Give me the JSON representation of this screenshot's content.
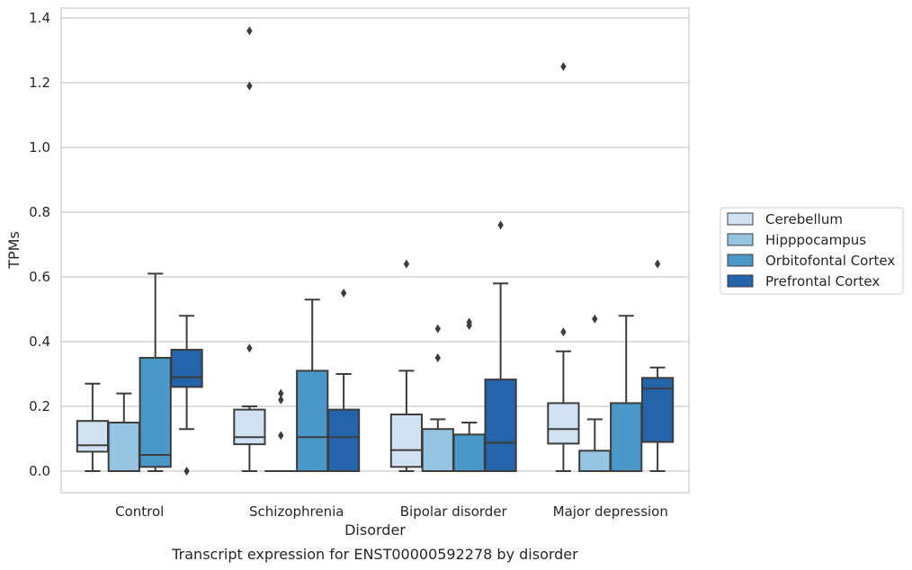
{
  "chart_data": {
    "type": "box",
    "title": "",
    "caption": "Transcript expression for ENST00000592278 by disorder",
    "xlabel": "Disorder",
    "ylabel": "TPMs",
    "ylim": [
      -0.065,
      1.43
    ],
    "yticks": [
      0.0,
      0.2,
      0.4,
      0.6,
      0.8,
      1.0,
      1.2,
      1.4
    ],
    "ytick_labels": [
      "0.0",
      "0.2",
      "0.4",
      "0.6",
      "0.8",
      "1.0",
      "1.2",
      "1.4"
    ],
    "grid": "horizontal",
    "legend_position": "right",
    "categories": [
      "Control",
      "Schizophrenia",
      "Bipolar disorder",
      "Major depression"
    ],
    "series": [
      {
        "name": "Cerebellum",
        "color": "#d0e1f2",
        "boxes": [
          {
            "whisker_low": 0.0,
            "q1": 0.06,
            "median": 0.08,
            "q3": 0.155,
            "whisker_high": 0.27,
            "outliers": []
          },
          {
            "whisker_low": 0.0,
            "q1": 0.083,
            "median": 0.105,
            "q3": 0.19,
            "whisker_high": 0.2,
            "outliers": [
              0.38,
              1.19,
              1.36
            ]
          },
          {
            "whisker_low": 0.0,
            "q1": 0.013,
            "median": 0.065,
            "q3": 0.175,
            "whisker_high": 0.31,
            "outliers": [
              0.64
            ]
          },
          {
            "whisker_low": 0.0,
            "q1": 0.085,
            "median": 0.13,
            "q3": 0.21,
            "whisker_high": 0.37,
            "outliers": [
              0.43,
              1.25
            ]
          }
        ]
      },
      {
        "name": "Hipppocampus",
        "color": "#94c4df",
        "boxes": [
          {
            "whisker_low": 0.0,
            "q1": 0.0,
            "median": 0.0,
            "q3": 0.15,
            "whisker_high": 0.24,
            "outliers": []
          },
          {
            "whisker_low": 0.0,
            "q1": 0.0,
            "median": 0.0,
            "q3": 0.0,
            "whisker_high": 0.0,
            "outliers": [
              0.11,
              0.22,
              0.24
            ]
          },
          {
            "whisker_low": 0.0,
            "q1": 0.0,
            "median": 0.0,
            "q3": 0.13,
            "whisker_high": 0.16,
            "outliers": [
              0.35,
              0.44
            ]
          },
          {
            "whisker_low": 0.0,
            "q1": 0.0,
            "median": 0.0,
            "q3": 0.063,
            "whisker_high": 0.16,
            "outliers": [
              0.47
            ]
          }
        ]
      },
      {
        "name": "Orbitofontal Cortex",
        "color": "#4a98c9",
        "boxes": [
          {
            "whisker_low": 0.0,
            "q1": 0.013,
            "median": 0.05,
            "q3": 0.35,
            "whisker_high": 0.61,
            "outliers": []
          },
          {
            "whisker_low": 0.0,
            "q1": 0.0,
            "median": 0.105,
            "q3": 0.31,
            "whisker_high": 0.53,
            "outliers": []
          },
          {
            "whisker_low": 0.0,
            "q1": 0.0,
            "median": 0.0,
            "q3": 0.113,
            "whisker_high": 0.15,
            "outliers": [
              0.45,
              0.46
            ]
          },
          {
            "whisker_low": 0.0,
            "q1": 0.0,
            "median": 0.0,
            "q3": 0.21,
            "whisker_high": 0.48,
            "outliers": []
          }
        ]
      },
      {
        "name": "Prefrontal Cortex",
        "color": "#2464ab",
        "boxes": [
          {
            "whisker_low": 0.13,
            "q1": 0.26,
            "median": 0.29,
            "q3": 0.375,
            "whisker_high": 0.48,
            "outliers": [
              0.0
            ]
          },
          {
            "whisker_low": 0.0,
            "q1": 0.0,
            "median": 0.105,
            "q3": 0.19,
            "whisker_high": 0.3,
            "outliers": [
              0.55
            ]
          },
          {
            "whisker_low": 0.0,
            "q1": 0.0,
            "median": 0.088,
            "q3": 0.283,
            "whisker_high": 0.58,
            "outliers": [
              0.76
            ]
          },
          {
            "whisker_low": 0.0,
            "q1": 0.09,
            "median": 0.255,
            "q3": 0.288,
            "whisker_high": 0.32,
            "outliers": [
              0.64
            ]
          }
        ]
      }
    ]
  }
}
